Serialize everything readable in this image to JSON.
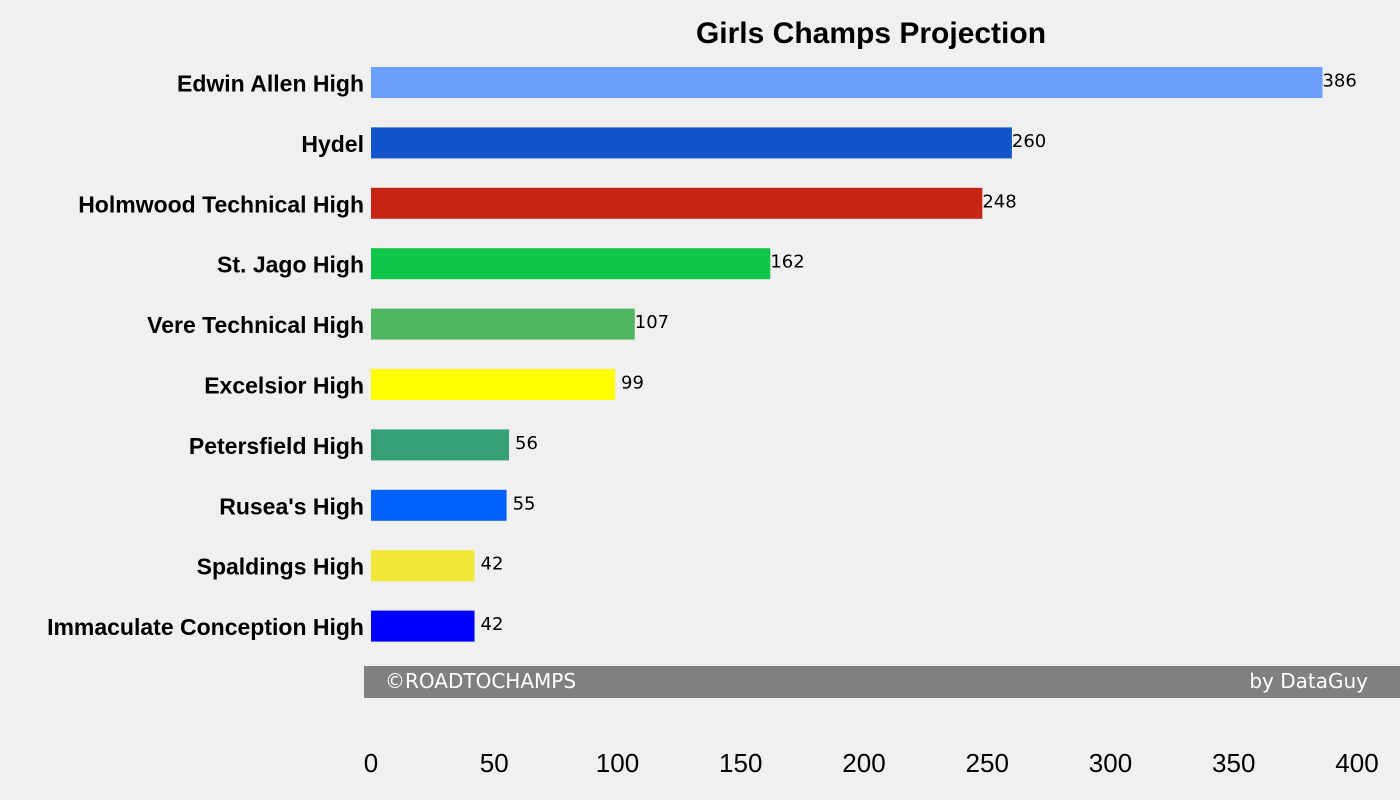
{
  "chart_data": {
    "type": "bar",
    "orientation": "horizontal",
    "title": "Girls Champs Projection",
    "xlabel": "",
    "ylabel": "",
    "categories": [
      "Edwin Allen High",
      "Hydel",
      "Holmwood Technical High",
      "St. Jago High",
      "Vere Technical High",
      "Excelsior High",
      "Petersfield High",
      "Rusea's High",
      "Spaldings High",
      "Immaculate Conception High"
    ],
    "values": [
      386,
      260,
      248,
      162,
      107,
      99,
      56,
      55,
      42,
      42
    ],
    "value_labels": [
      "386",
      "260",
      "248",
      "162",
      "107",
      "99",
      "56",
      "55",
      "42",
      "42"
    ],
    "colors": [
      "#6aa0fb",
      "#1253c9",
      "#c62613",
      "#0fc64b",
      "#50b661",
      "#ffff00",
      "#359f76",
      "#0061ff",
      "#f0e836",
      "#0000ff"
    ],
    "xlim": [
      0,
      400
    ],
    "xticks": [
      0,
      50,
      100,
      150,
      200,
      250,
      300,
      350,
      400
    ],
    "xtick_labels": [
      "0",
      "50",
      "100",
      "150",
      "200",
      "250",
      "300",
      "350",
      "400"
    ],
    "grid": false,
    "background": "#f0f0f0"
  },
  "footer": {
    "left_text": "©ROADTOCHAMPS",
    "right_text": "by DataGuy",
    "background": "#808080"
  }
}
